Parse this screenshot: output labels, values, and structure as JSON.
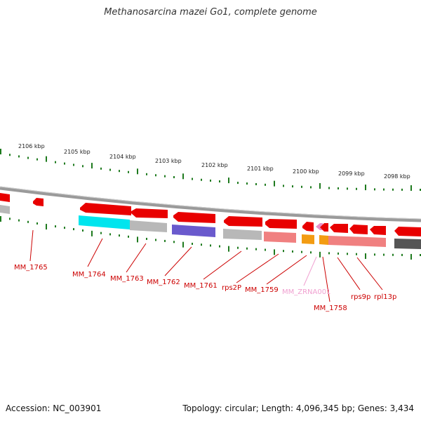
{
  "title": "Methanosarcina mazei Go1, complete genome",
  "accession": "Accession: NC_003901",
  "topology": "Topology: circular; Length: 4,096,345 bp; Genes: 3,434",
  "colors": {
    "gene_red": "#e80000",
    "gene_label": "#cc0000",
    "rna_label": "#f0a0d0",
    "tick_green": "#1e7a1e",
    "backbone": "#888888"
  },
  "scale_labels": [
    "2106 kbp",
    "2105 kbp",
    "2104 kbp",
    "2103 kbp",
    "2102 kbp",
    "2101 kbp",
    "2100 kbp",
    "2099 kbp",
    "2098 kbp"
  ],
  "gene_labels": [
    "MM_1765",
    "MM_1764",
    "MM_1763",
    "MM_1762",
    "MM_1761",
    "rps2P",
    "MM_1759",
    "MM_ZRNA001",
    "MM_1758",
    "rps9p",
    "rpl13p"
  ]
}
